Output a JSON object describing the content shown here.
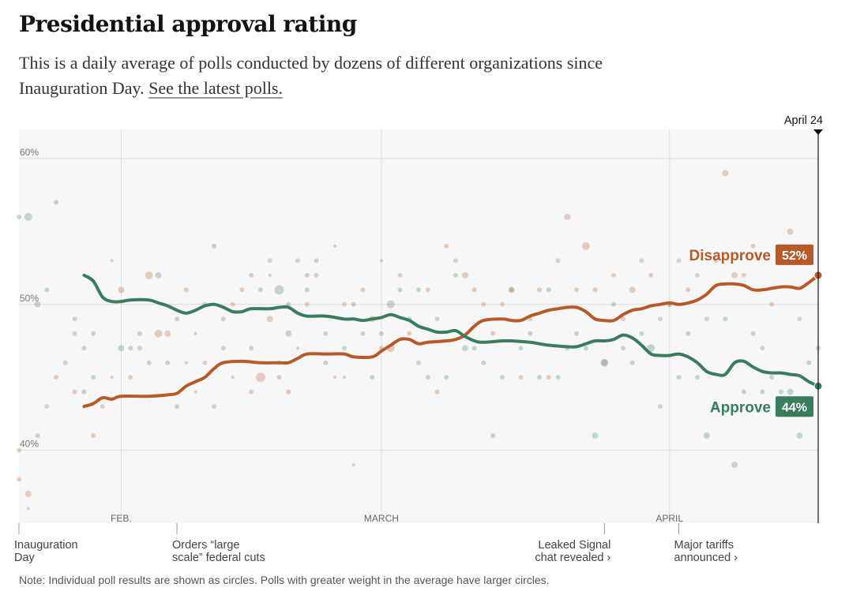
{
  "title": "Presidential approval rating",
  "subtitle_text": "This is a daily average of polls conducted by dozens of different organizations since Inauguration Day.",
  "subtitle_link": "See the latest polls.",
  "note": "Note: Individual poll results are shown as circles. Polls with greater weight in the average have larger circles.",
  "colors": {
    "approve": "#3a7d5e",
    "disapprove": "#b55a28"
  },
  "chart_data": {
    "type": "line",
    "x_start": "Jan 20",
    "x_end": "April 24",
    "ylim": [
      35,
      62
    ],
    "y_ticks": [
      {
        "value": 40,
        "label": "40%"
      },
      {
        "value": 50,
        "label": "50%"
      },
      {
        "value": 60,
        "label": "60%"
      }
    ],
    "month_ticks": [
      {
        "day": 11,
        "label": "FEB."
      },
      {
        "day": 39,
        "label": "MARCH"
      },
      {
        "day": 70,
        "label": "APRIL"
      }
    ],
    "current_date_label": "April 24",
    "annotations": [
      {
        "day": 0,
        "lines": [
          "Inauguration",
          "Day"
        ],
        "align": "left"
      },
      {
        "day": 17,
        "lines": [
          "Orders “large",
          "scale” federal cuts"
        ],
        "align": "left"
      },
      {
        "day": 63,
        "lines": [
          "Leaked Signal",
          "chat revealed ›"
        ],
        "align": "right"
      },
      {
        "day": 71,
        "lines": [
          "Major tariffs",
          "announced ›"
        ],
        "align": "left"
      }
    ],
    "series": [
      {
        "name": "Disapprove",
        "end_label": "52%",
        "points": [
          [
            7,
            43.0
          ],
          [
            8,
            43.2
          ],
          [
            9,
            43.6
          ],
          [
            10,
            43.5
          ],
          [
            11,
            43.7
          ],
          [
            14,
            43.7
          ],
          [
            16,
            43.8
          ],
          [
            17,
            43.9
          ],
          [
            18,
            44.4
          ],
          [
            19,
            44.7
          ],
          [
            20,
            45.0
          ],
          [
            21,
            45.6
          ],
          [
            22,
            46.0
          ],
          [
            24,
            46.1
          ],
          [
            26,
            46.0
          ],
          [
            28,
            46.0
          ],
          [
            29,
            46.0
          ],
          [
            30,
            46.3
          ],
          [
            31,
            46.6
          ],
          [
            33,
            46.6
          ],
          [
            35,
            46.6
          ],
          [
            36,
            46.4
          ],
          [
            38,
            46.4
          ],
          [
            39,
            46.8
          ],
          [
            40,
            47.2
          ],
          [
            41,
            47.6
          ],
          [
            42,
            47.6
          ],
          [
            43,
            47.3
          ],
          [
            44,
            47.4
          ],
          [
            46,
            47.5
          ],
          [
            47,
            47.6
          ],
          [
            48,
            47.9
          ],
          [
            49,
            48.5
          ],
          [
            50,
            48.9
          ],
          [
            52,
            49.0
          ],
          [
            53,
            48.9
          ],
          [
            54,
            48.9
          ],
          [
            55,
            49.2
          ],
          [
            56,
            49.4
          ],
          [
            57,
            49.6
          ],
          [
            58,
            49.7
          ],
          [
            59,
            49.8
          ],
          [
            60,
            49.8
          ],
          [
            61,
            49.5
          ],
          [
            62,
            49.0
          ],
          [
            63,
            48.9
          ],
          [
            64,
            48.9
          ],
          [
            65,
            49.3
          ],
          [
            66,
            49.6
          ],
          [
            67,
            49.7
          ],
          [
            68,
            49.9
          ],
          [
            69,
            50.0
          ],
          [
            70,
            50.1
          ],
          [
            71,
            50.0
          ],
          [
            72,
            50.1
          ],
          [
            73,
            50.3
          ],
          [
            74,
            50.7
          ],
          [
            75,
            51.3
          ],
          [
            76,
            51.4
          ],
          [
            77,
            51.4
          ],
          [
            78,
            51.3
          ],
          [
            79,
            51.0
          ],
          [
            80,
            51.0
          ],
          [
            81,
            51.1
          ],
          [
            82,
            51.2
          ],
          [
            83,
            51.2
          ],
          [
            84,
            51.1
          ],
          [
            85,
            51.5
          ],
          [
            86,
            52.0
          ]
        ]
      },
      {
        "name": "Approve",
        "end_label": "44%",
        "points": [
          [
            7,
            52.0
          ],
          [
            8,
            51.6
          ],
          [
            9,
            50.5
          ],
          [
            10,
            50.2
          ],
          [
            11,
            50.2
          ],
          [
            12,
            50.3
          ],
          [
            14,
            50.3
          ],
          [
            15,
            50.1
          ],
          [
            16,
            49.9
          ],
          [
            17,
            49.6
          ],
          [
            18,
            49.4
          ],
          [
            19,
            49.6
          ],
          [
            20,
            49.9
          ],
          [
            21,
            50.0
          ],
          [
            22,
            49.8
          ],
          [
            23,
            49.5
          ],
          [
            24,
            49.5
          ],
          [
            25,
            49.7
          ],
          [
            27,
            49.7
          ],
          [
            28,
            49.8
          ],
          [
            29,
            49.8
          ],
          [
            30,
            49.4
          ],
          [
            31,
            49.2
          ],
          [
            33,
            49.2
          ],
          [
            35,
            49.0
          ],
          [
            36,
            49.0
          ],
          [
            37,
            48.9
          ],
          [
            38,
            49.0
          ],
          [
            39,
            49.1
          ],
          [
            40,
            49.3
          ],
          [
            41,
            49.1
          ],
          [
            42,
            48.9
          ],
          [
            43,
            48.5
          ],
          [
            44,
            48.3
          ],
          [
            45,
            48.1
          ],
          [
            46,
            48.1
          ],
          [
            47,
            48.2
          ],
          [
            48,
            47.8
          ],
          [
            49,
            47.5
          ],
          [
            50,
            47.4
          ],
          [
            52,
            47.5
          ],
          [
            53,
            47.5
          ],
          [
            55,
            47.4
          ],
          [
            56,
            47.3
          ],
          [
            57,
            47.2
          ],
          [
            59,
            47.1
          ],
          [
            60,
            47.1
          ],
          [
            61,
            47.3
          ],
          [
            62,
            47.5
          ],
          [
            63,
            47.5
          ],
          [
            64,
            47.6
          ],
          [
            65,
            47.9
          ],
          [
            66,
            47.7
          ],
          [
            67,
            47.2
          ],
          [
            68,
            46.6
          ],
          [
            69,
            46.5
          ],
          [
            70,
            46.5
          ],
          [
            71,
            46.6
          ],
          [
            72,
            46.4
          ],
          [
            73,
            46.0
          ],
          [
            74,
            45.4
          ],
          [
            75,
            45.2
          ],
          [
            76,
            45.2
          ],
          [
            77,
            46.0
          ],
          [
            78,
            46.1
          ],
          [
            79,
            45.7
          ],
          [
            80,
            45.4
          ],
          [
            81,
            45.3
          ],
          [
            82,
            45.3
          ],
          [
            83,
            45.2
          ],
          [
            84,
            45.1
          ],
          [
            85,
            44.7
          ],
          [
            86,
            44.4
          ]
        ]
      }
    ],
    "polls_approve": [
      [
        0,
        56,
        3
      ],
      [
        1,
        56,
        5
      ],
      [
        2,
        50,
        4
      ],
      [
        3,
        51,
        3
      ],
      [
        4,
        57,
        3
      ],
      [
        6,
        49,
        3
      ],
      [
        7,
        47,
        3
      ],
      [
        7,
        44,
        3
      ],
      [
        8,
        48,
        3
      ],
      [
        8,
        45,
        3
      ],
      [
        10,
        53,
        2
      ],
      [
        11,
        47,
        4
      ],
      [
        12,
        47,
        3
      ],
      [
        13,
        48,
        3
      ],
      [
        14,
        46,
        3
      ],
      [
        15,
        52,
        4
      ],
      [
        16,
        46,
        3
      ],
      [
        17,
        49,
        3
      ],
      [
        18,
        46,
        2
      ],
      [
        19,
        48,
        2
      ],
      [
        20,
        50,
        3
      ],
      [
        21,
        54,
        3
      ],
      [
        22,
        49,
        3
      ],
      [
        23,
        45,
        2
      ],
      [
        25,
        52,
        3
      ],
      [
        25,
        47,
        3
      ],
      [
        26,
        51,
        3
      ],
      [
        27,
        52,
        2
      ],
      [
        28,
        51,
        6
      ],
      [
        28,
        45,
        3
      ],
      [
        29,
        50,
        3
      ],
      [
        29,
        48,
        4
      ],
      [
        30,
        47,
        2
      ],
      [
        31,
        52,
        3
      ],
      [
        31,
        51,
        3
      ],
      [
        32,
        53,
        3
      ],
      [
        33,
        46,
        3
      ],
      [
        34,
        54,
        2
      ],
      [
        35,
        47,
        3
      ],
      [
        35,
        45,
        2
      ],
      [
        36,
        50,
        3
      ],
      [
        37,
        48,
        3
      ],
      [
        38,
        45,
        3
      ],
      [
        39,
        53,
        2
      ],
      [
        39,
        48,
        3
      ],
      [
        40,
        50,
        5
      ],
      [
        41,
        51,
        3
      ],
      [
        42,
        49,
        3
      ],
      [
        43,
        51,
        3
      ],
      [
        44,
        45,
        3
      ],
      [
        45,
        49,
        3
      ],
      [
        46,
        45,
        3
      ],
      [
        47,
        52,
        3
      ],
      [
        48,
        47,
        4
      ],
      [
        49,
        47,
        3
      ],
      [
        50,
        46,
        3
      ],
      [
        51,
        41,
        3
      ],
      [
        52,
        45,
        3
      ],
      [
        53,
        51,
        3
      ],
      [
        54,
        47,
        3
      ],
      [
        55,
        48,
        3
      ],
      [
        56,
        45,
        3
      ],
      [
        57,
        51,
        3
      ],
      [
        58,
        45,
        3
      ],
      [
        59,
        47,
        3
      ],
      [
        60,
        48,
        3
      ],
      [
        61,
        47,
        3
      ],
      [
        62,
        41,
        4
      ],
      [
        63,
        46,
        5
      ],
      [
        64,
        50,
        3
      ],
      [
        65,
        47,
        3
      ],
      [
        66,
        46,
        3
      ],
      [
        67,
        48,
        3
      ],
      [
        68,
        47,
        5
      ],
      [
        69,
        43,
        3
      ],
      [
        70,
        50,
        3
      ],
      [
        71,
        45,
        3
      ],
      [
        72,
        48,
        3
      ],
      [
        73,
        45,
        3
      ],
      [
        74,
        41,
        4
      ],
      [
        75,
        43,
        3
      ],
      [
        76,
        49,
        3
      ],
      [
        77,
        39,
        4
      ],
      [
        78,
        44,
        3
      ],
      [
        79,
        48,
        3
      ],
      [
        80,
        44,
        3
      ],
      [
        81,
        45,
        3
      ],
      [
        82,
        44,
        3
      ],
      [
        83,
        44,
        4
      ],
      [
        84,
        41,
        4
      ],
      [
        85,
        46,
        3
      ],
      [
        86,
        47,
        3
      ]
    ],
    "polls_disapprove": [
      [
        0,
        40,
        3
      ],
      [
        0,
        38,
        3
      ],
      [
        1,
        36,
        2
      ],
      [
        1,
        37,
        4
      ],
      [
        2,
        41,
        3
      ],
      [
        3,
        43,
        3
      ],
      [
        4,
        45,
        3
      ],
      [
        5,
        46,
        3
      ],
      [
        6,
        48,
        3
      ],
      [
        6,
        44,
        3
      ],
      [
        8,
        41,
        3
      ],
      [
        9,
        43,
        3
      ],
      [
        10,
        45,
        2
      ],
      [
        11,
        51,
        4
      ],
      [
        12,
        45,
        3
      ],
      [
        13,
        47,
        3
      ],
      [
        14,
        52,
        5
      ],
      [
        15,
        48,
        5
      ],
      [
        16,
        48,
        4
      ],
      [
        17,
        43,
        3
      ],
      [
        18,
        51,
        3
      ],
      [
        19,
        44,
        2
      ],
      [
        20,
        46,
        3
      ],
      [
        21,
        43,
        3
      ],
      [
        22,
        47,
        3
      ],
      [
        23,
        50,
        3
      ],
      [
        24,
        51,
        3
      ],
      [
        25,
        44,
        3
      ],
      [
        26,
        45,
        6
      ],
      [
        27,
        53,
        3
      ],
      [
        27,
        49,
        4
      ],
      [
        28,
        46,
        3
      ],
      [
        29,
        44,
        3
      ],
      [
        30,
        53,
        3
      ],
      [
        31,
        50,
        3
      ],
      [
        32,
        52,
        3
      ],
      [
        33,
        48,
        3
      ],
      [
        34,
        45,
        2
      ],
      [
        35,
        50,
        3
      ],
      [
        36,
        39,
        2
      ],
      [
        37,
        51,
        3
      ],
      [
        38,
        49,
        4
      ],
      [
        39,
        47,
        3
      ],
      [
        40,
        47,
        5
      ],
      [
        41,
        52,
        3
      ],
      [
        42,
        48,
        3
      ],
      [
        43,
        46,
        3
      ],
      [
        44,
        51,
        3
      ],
      [
        45,
        44,
        3
      ],
      [
        46,
        54,
        3
      ],
      [
        47,
        53,
        3
      ],
      [
        48,
        52,
        4
      ],
      [
        49,
        51,
        3
      ],
      [
        50,
        50,
        3
      ],
      [
        51,
        48,
        3
      ],
      [
        52,
        50,
        3
      ],
      [
        53,
        51,
        4
      ],
      [
        54,
        45,
        3
      ],
      [
        55,
        49,
        3
      ],
      [
        56,
        51,
        3
      ],
      [
        57,
        45,
        3
      ],
      [
        58,
        53,
        3
      ],
      [
        59,
        56,
        4
      ],
      [
        60,
        51,
        3
      ],
      [
        61,
        54,
        5
      ],
      [
        62,
        51,
        3
      ],
      [
        63,
        46,
        4
      ],
      [
        64,
        52,
        3
      ],
      [
        65,
        49,
        3
      ],
      [
        66,
        51,
        4
      ],
      [
        67,
        53,
        3
      ],
      [
        68,
        52,
        3
      ],
      [
        69,
        49,
        3
      ],
      [
        70,
        50,
        3
      ],
      [
        71,
        53,
        3
      ],
      [
        72,
        51,
        3
      ],
      [
        73,
        52,
        3
      ],
      [
        74,
        49,
        3
      ],
      [
        75,
        53,
        3
      ],
      [
        76,
        59,
        4
      ],
      [
        77,
        52,
        4
      ],
      [
        78,
        52,
        3
      ],
      [
        79,
        54,
        3
      ],
      [
        80,
        47,
        3
      ],
      [
        81,
        50,
        3
      ],
      [
        82,
        53,
        3
      ],
      [
        83,
        55,
        4
      ],
      [
        84,
        49,
        3
      ]
    ]
  }
}
